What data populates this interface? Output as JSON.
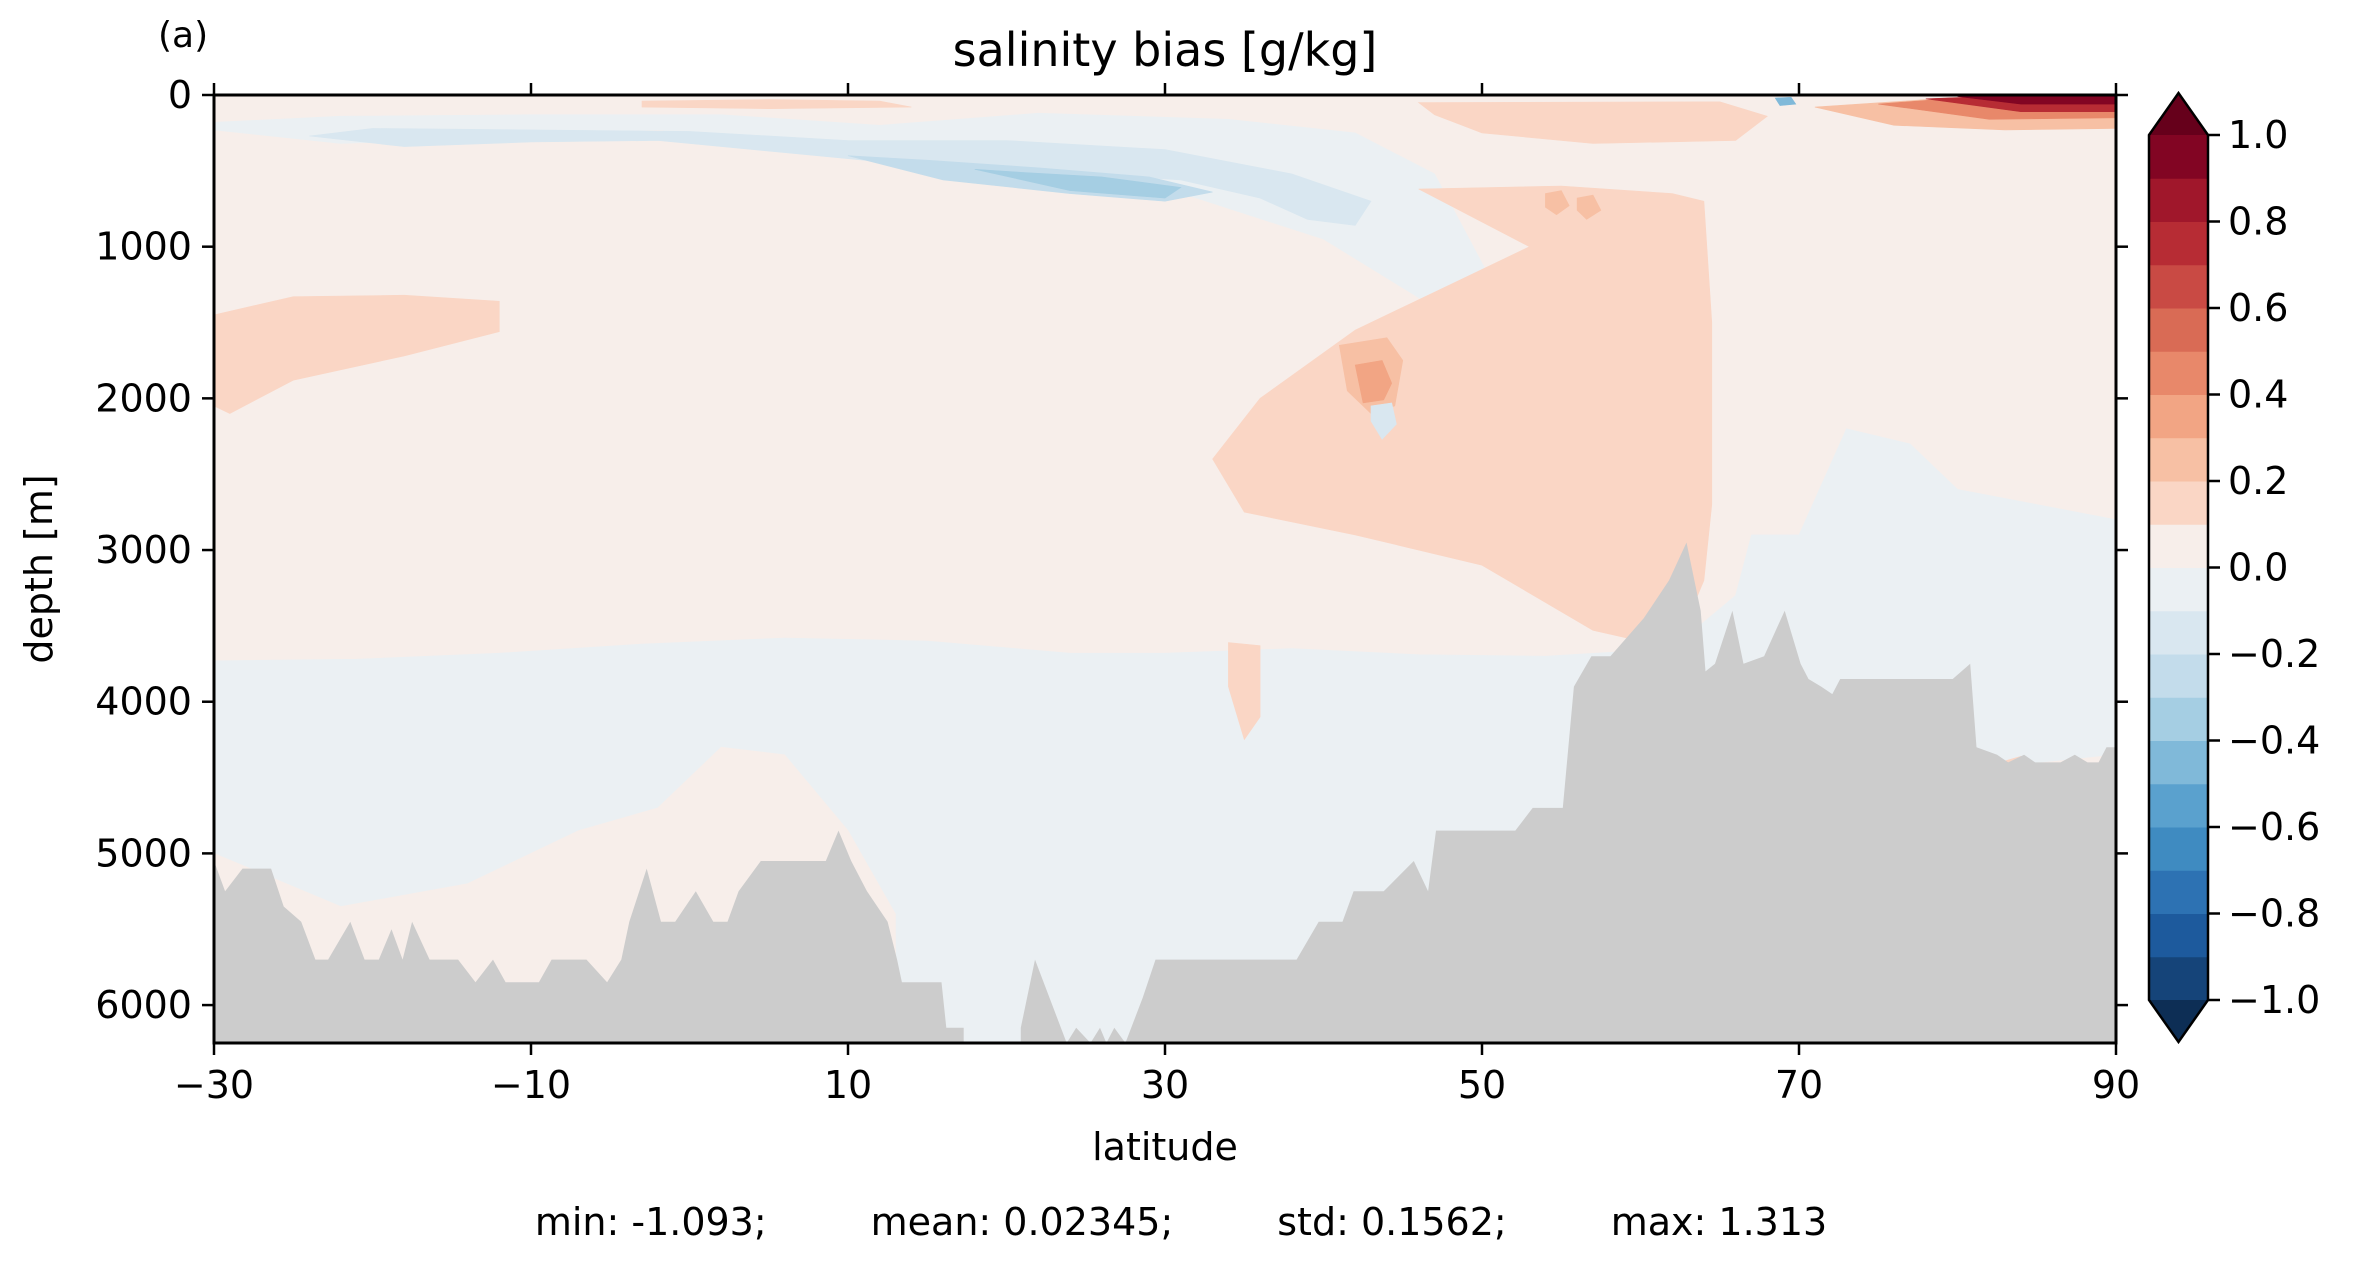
{
  "chart_data": {
    "type": "heatmap",
    "panel_label": "(a)",
    "title": "salinity bias [g/kg]",
    "xlabel": "latitude",
    "ylabel": "depth [m]",
    "xlim": [
      -30,
      90
    ],
    "ylim": [
      6250,
      0
    ],
    "y_inverted": true,
    "x_ticks": [
      -30,
      -10,
      10,
      30,
      50,
      70,
      90
    ],
    "x_tick_labels": [
      "−30",
      "−10",
      "10",
      "30",
      "50",
      "70",
      "90"
    ],
    "y_ticks": [
      0,
      1000,
      2000,
      3000,
      4000,
      5000,
      6000
    ],
    "y_tick_labels": [
      "0",
      "1000",
      "2000",
      "3000",
      "4000",
      "5000",
      "6000"
    ],
    "colorbar": {
      "cmap": "RdBu_r",
      "extend": "both",
      "levels": [
        -1.0,
        -0.9,
        -0.8,
        -0.7,
        -0.6,
        -0.5,
        -0.4,
        -0.3,
        -0.2,
        -0.1,
        0.0,
        0.1,
        0.2,
        0.3,
        0.4,
        0.5,
        0.6,
        0.7,
        0.8,
        0.9,
        1.0
      ],
      "colors": [
        "#154479",
        "#1d5a9d",
        "#2d72b3",
        "#3f8bc1",
        "#5aa1ce",
        "#80b9d9",
        "#a5cee3",
        "#c3dceb",
        "#d9e7f0",
        "#ebf0f3",
        "#f7eeea",
        "#fad6c5",
        "#f7c0a4",
        "#f2a584",
        "#e8886a",
        "#d96b55",
        "#c94a44",
        "#b72c34",
        "#a0172b",
        "#820523"
      ],
      "under_color": "#0d2e55",
      "over_color": "#66001b",
      "tick_values": [
        1.0,
        0.8,
        0.6,
        0.4,
        0.2,
        0.0,
        -0.2,
        -0.4,
        -0.6,
        -0.8,
        -1.0
      ],
      "tick_labels": [
        "1.0",
        "0.8",
        "0.6",
        "0.4",
        "0.2",
        "0.0",
        "−0.2",
        "−0.4",
        "−0.6",
        "−0.8",
        "−1.0"
      ]
    },
    "land_color": "#cccccc",
    "regions": [
      {
        "value": 0.05,
        "polygon": [
          [
            -30,
            0
          ],
          [
            90,
            0
          ],
          [
            90,
            6250
          ],
          [
            -30,
            6250
          ]
        ]
      },
      {
        "value": -0.05,
        "polygon": [
          [
            -30,
            3730
          ],
          [
            -21,
            3720
          ],
          [
            -12,
            3680
          ],
          [
            -3,
            3620
          ],
          [
            6,
            3580
          ],
          [
            15,
            3600
          ],
          [
            24,
            3680
          ],
          [
            30,
            3680
          ],
          [
            38,
            3650
          ],
          [
            46,
            3690
          ],
          [
            54,
            3700
          ],
          [
            62,
            3650
          ],
          [
            66,
            3300
          ],
          [
            67,
            2900
          ],
          [
            70,
            2900
          ],
          [
            73,
            2200
          ],
          [
            77,
            2300
          ],
          [
            80,
            2600
          ],
          [
            85,
            2700
          ],
          [
            90,
            2800
          ],
          [
            90,
            6250
          ],
          [
            -30,
            6250
          ]
        ]
      },
      {
        "value": 0.05,
        "polygon": [
          [
            -30,
            5000
          ],
          [
            -22,
            5350
          ],
          [
            -14,
            5200
          ],
          [
            -7,
            4850
          ],
          [
            -2,
            4700
          ],
          [
            2,
            4300
          ],
          [
            6,
            4350
          ],
          [
            10,
            4850
          ],
          [
            13,
            5400
          ],
          [
            13,
            6250
          ],
          [
            -30,
            6250
          ]
        ]
      },
      {
        "value": 0.05,
        "polygon": [
          [
            81,
            4450
          ],
          [
            90,
            4350
          ],
          [
            90,
            6250
          ],
          [
            81,
            6250
          ]
        ]
      },
      {
        "value": -0.05,
        "polygon": [
          [
            -30,
            230
          ],
          [
            -22,
            320
          ],
          [
            -12,
            280
          ],
          [
            -2,
            230
          ],
          [
            8,
            330
          ],
          [
            15,
            380
          ],
          [
            25,
            480
          ],
          [
            32,
            680
          ],
          [
            40,
            950
          ],
          [
            47,
            1400
          ],
          [
            52,
            1700
          ],
          [
            52,
            1500
          ],
          [
            47,
            520
          ],
          [
            42,
            250
          ],
          [
            34,
            160
          ],
          [
            22,
            120
          ],
          [
            12,
            200
          ],
          [
            2,
            130
          ],
          [
            -10,
            130
          ],
          [
            -22,
            140
          ],
          [
            -30,
            180
          ]
        ]
      },
      {
        "value": -0.15,
        "polygon": [
          [
            -24,
            270
          ],
          [
            -18,
            340
          ],
          [
            -10,
            310
          ],
          [
            -2,
            300
          ],
          [
            4,
            360
          ],
          [
            11,
            430
          ],
          [
            18,
            460
          ],
          [
            25,
            520
          ],
          [
            31,
            560
          ],
          [
            36,
            680
          ],
          [
            39,
            820
          ],
          [
            42,
            860
          ],
          [
            43,
            700
          ],
          [
            38,
            520
          ],
          [
            30,
            360
          ],
          [
            20,
            300
          ],
          [
            10,
            300
          ],
          [
            0,
            240
          ],
          [
            -10,
            230
          ],
          [
            -20,
            220
          ]
        ]
      },
      {
        "value": -0.25,
        "polygon": [
          [
            10,
            400
          ],
          [
            16,
            560
          ],
          [
            24,
            650
          ],
          [
            30,
            700
          ],
          [
            33,
            640
          ],
          [
            29,
            540
          ],
          [
            22,
            480
          ],
          [
            15,
            430
          ]
        ]
      },
      {
        "value": -0.35,
        "polygon": [
          [
            18,
            490
          ],
          [
            24,
            630
          ],
          [
            30,
            680
          ],
          [
            31,
            610
          ],
          [
            26,
            540
          ],
          [
            21,
            510
          ]
        ]
      },
      {
        "value": 0.15,
        "polygon": [
          [
            46,
            620
          ],
          [
            55,
            600
          ],
          [
            62,
            650
          ],
          [
            64,
            700
          ],
          [
            64.5,
            1500
          ],
          [
            64.5,
            2700
          ],
          [
            64,
            3200
          ],
          [
            63,
            3450
          ],
          [
            60,
            3600
          ],
          [
            57,
            3530
          ],
          [
            50,
            3100
          ],
          [
            42,
            2900
          ],
          [
            35,
            2750
          ],
          [
            33,
            2400
          ],
          [
            36,
            2000
          ],
          [
            42,
            1550
          ],
          [
            48,
            1250
          ],
          [
            53,
            1000
          ]
        ]
      },
      {
        "value": 0.15,
        "polygon": [
          [
            -30,
            1450
          ],
          [
            -25,
            1330
          ],
          [
            -18,
            1320
          ],
          [
            -12,
            1360
          ],
          [
            -12,
            1560
          ],
          [
            -18,
            1720
          ],
          [
            -25,
            1880
          ],
          [
            -29,
            2100
          ],
          [
            -30,
            2050
          ]
        ]
      },
      {
        "value": 0.15,
        "polygon": [
          [
            46,
            50
          ],
          [
            65,
            45
          ],
          [
            68,
            140
          ],
          [
            66,
            300
          ],
          [
            57,
            320
          ],
          [
            50,
            250
          ],
          [
            47,
            130
          ]
        ]
      },
      {
        "value": 0.15,
        "polygon": [
          [
            -3,
            40
          ],
          [
            5,
            30
          ],
          [
            12,
            40
          ],
          [
            14,
            80
          ],
          [
            5,
            90
          ],
          [
            -3,
            80
          ]
        ]
      },
      {
        "value": 0.15,
        "polygon": [
          [
            34,
            3610
          ],
          [
            36,
            3630
          ],
          [
            36,
            4100
          ],
          [
            35,
            4250
          ],
          [
            34,
            3900
          ]
        ]
      },
      {
        "value": 0.15,
        "polygon": [
          [
            81,
            4450
          ],
          [
            84,
            4360
          ],
          [
            86,
            4600
          ],
          [
            82,
            4700
          ],
          [
            80.5,
            4900
          ]
        ]
      },
      {
        "value": 0.25,
        "polygon": [
          [
            41,
            1650
          ],
          [
            44,
            1600
          ],
          [
            45,
            1750
          ],
          [
            44.5,
            2050
          ],
          [
            43,
            2100
          ],
          [
            41.5,
            1950
          ]
        ]
      },
      {
        "value": 0.35,
        "polygon": [
          [
            42,
            1780
          ],
          [
            43.7,
            1750
          ],
          [
            44.3,
            1900
          ],
          [
            43.8,
            2010
          ],
          [
            42.5,
            2030
          ]
        ]
      },
      {
        "value": 0.25,
        "polygon": [
          [
            54,
            650
          ],
          [
            55,
            630
          ],
          [
            55.5,
            730
          ],
          [
            54.7,
            790
          ],
          [
            54,
            740
          ]
        ]
      },
      {
        "value": 0.25,
        "polygon": [
          [
            56,
            680
          ],
          [
            57,
            660
          ],
          [
            57.5,
            760
          ],
          [
            56.6,
            820
          ],
          [
            56,
            760
          ]
        ]
      },
      {
        "value": 0.25,
        "polygon": [
          [
            71,
            80
          ],
          [
            78,
            30
          ],
          [
            90,
            20
          ],
          [
            90,
            220
          ],
          [
            83,
            230
          ],
          [
            76,
            200
          ]
        ]
      },
      {
        "value": 0.45,
        "polygon": [
          [
            75,
            60
          ],
          [
            80,
            20
          ],
          [
            90,
            10
          ],
          [
            90,
            150
          ],
          [
            82,
            160
          ]
        ]
      },
      {
        "value": 0.75,
        "polygon": [
          [
            78,
            25
          ],
          [
            83,
            5
          ],
          [
            90,
            0
          ],
          [
            90,
            110
          ],
          [
            84,
            110
          ]
        ]
      },
      {
        "value": 0.95,
        "polygon": [
          [
            80,
            10
          ],
          [
            86,
            0
          ],
          [
            90,
            0
          ],
          [
            90,
            60
          ],
          [
            84,
            60
          ]
        ]
      },
      {
        "value": -0.15,
        "polygon": [
          [
            43,
            2050
          ],
          [
            44.3,
            2030
          ],
          [
            44.6,
            2170
          ],
          [
            43.7,
            2270
          ],
          [
            43,
            2150
          ]
        ]
      },
      {
        "value": -0.45,
        "polygon": [
          [
            68.5,
            20
          ],
          [
            69.5,
            15
          ],
          [
            69.8,
            60
          ],
          [
            68.8,
            70
          ]
        ]
      }
    ],
    "bathymetry": [
      [
        -30,
        5050
      ],
      [
        -29.3,
        5250
      ],
      [
        -28.2,
        5100
      ],
      [
        -26.4,
        5100
      ],
      [
        -25.6,
        5350
      ],
      [
        -24.5,
        5450
      ],
      [
        -23.6,
        5700
      ],
      [
        -22.8,
        5700
      ],
      [
        -21.4,
        5450
      ],
      [
        -20.5,
        5700
      ],
      [
        -19.6,
        5700
      ],
      [
        -18.8,
        5500
      ],
      [
        -18.1,
        5700
      ],
      [
        -17.5,
        5450
      ],
      [
        -16.4,
        5700
      ],
      [
        -14.6,
        5700
      ],
      [
        -13.5,
        5850
      ],
      [
        -12.4,
        5700
      ],
      [
        -11.6,
        5850
      ],
      [
        -9.5,
        5850
      ],
      [
        -8.7,
        5700
      ],
      [
        -6.5,
        5700
      ],
      [
        -5.2,
        5850
      ],
      [
        -4.3,
        5700
      ],
      [
        -3.8,
        5450
      ],
      [
        -2.7,
        5100
      ],
      [
        -1.8,
        5450
      ],
      [
        -0.9,
        5450
      ],
      [
        0.4,
        5250
      ],
      [
        1.5,
        5450
      ],
      [
        2.4,
        5450
      ],
      [
        3.1,
        5250
      ],
      [
        4.5,
        5050
      ],
      [
        8.6,
        5050
      ],
      [
        9.4,
        4850
      ],
      [
        10.2,
        5050
      ],
      [
        11.2,
        5250
      ],
      [
        12.5,
        5450
      ],
      [
        13.1,
        5700
      ],
      [
        13.4,
        5850
      ],
      [
        15.9,
        5850
      ],
      [
        16.2,
        6150
      ],
      [
        17.3,
        6150
      ],
      [
        17.3,
        6250
      ],
      [
        20.9,
        6250
      ],
      [
        20.9,
        6150
      ],
      [
        21.8,
        5700
      ],
      [
        23.8,
        6250
      ],
      [
        24.4,
        6150
      ],
      [
        25.3,
        6250
      ],
      [
        25.9,
        6150
      ],
      [
        26.3,
        6250
      ],
      [
        26.8,
        6150
      ],
      [
        27.5,
        6250
      ],
      [
        28.6,
        5950
      ],
      [
        29.4,
        5700
      ],
      [
        38.3,
        5700
      ],
      [
        39.7,
        5450
      ],
      [
        41.2,
        5450
      ],
      [
        41.9,
        5250
      ],
      [
        43.8,
        5250
      ],
      [
        45.7,
        5050
      ],
      [
        46.6,
        5250
      ],
      [
        47.1,
        4850
      ],
      [
        52.1,
        4850
      ],
      [
        53.2,
        4700
      ],
      [
        55.1,
        4700
      ],
      [
        55.8,
        3900
      ],
      [
        56.9,
        3700
      ],
      [
        58.1,
        3700
      ],
      [
        60.2,
        3450
      ],
      [
        61.8,
        3200
      ],
      [
        62.9,
        2950
      ],
      [
        63.8,
        3400
      ],
      [
        64.1,
        3800
      ],
      [
        64.7,
        3750
      ],
      [
        65.8,
        3400
      ],
      [
        66.5,
        3750
      ],
      [
        67.8,
        3700
      ],
      [
        69.1,
        3400
      ],
      [
        70.1,
        3750
      ],
      [
        70.6,
        3850
      ],
      [
        71.4,
        3900
      ],
      [
        72.1,
        3950
      ],
      [
        72.6,
        3850
      ],
      [
        74.2,
        3850
      ],
      [
        77.4,
        3850
      ],
      [
        79.7,
        3850
      ],
      [
        80.8,
        3750
      ],
      [
        81.2,
        4300
      ],
      [
        82.5,
        4350
      ],
      [
        83.2,
        4400
      ],
      [
        84.2,
        4350
      ],
      [
        84.9,
        4400
      ],
      [
        86.5,
        4400
      ],
      [
        87.4,
        4350
      ],
      [
        88.2,
        4400
      ],
      [
        88.9,
        4400
      ],
      [
        89.4,
        4300
      ],
      [
        90,
        4300
      ],
      [
        90,
        6250
      ],
      [
        -30,
        6250
      ]
    ]
  },
  "stats": {
    "min": "min: -1.093;",
    "mean": "mean: 0.02345;",
    "std": "std: 0.1562;",
    "max": "max: 1.313"
  }
}
